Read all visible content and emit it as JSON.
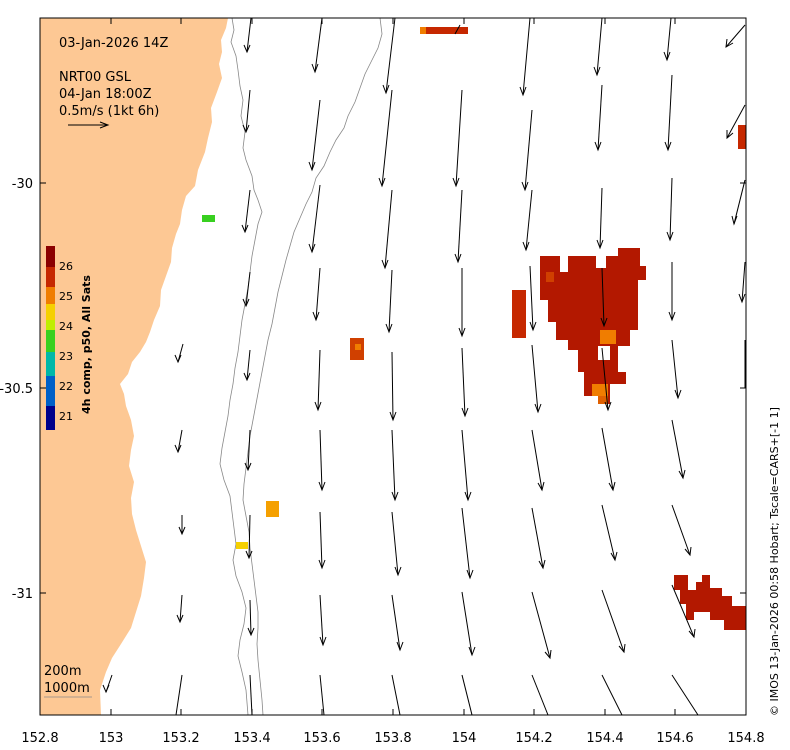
{
  "title": {
    "date": "03-Jan-2026 14Z",
    "product": "NRT00 GSL",
    "valid_time": "04-Jan 18:00Z",
    "scale_label": "0.5m/s (1kt 6h)"
  },
  "axes": {
    "x_ticks": [
      "152.8",
      "153",
      "153.2",
      "153.4",
      "153.6",
      "153.8",
      "154",
      "154.2",
      "154.4",
      "154.6",
      "154.8"
    ],
    "y_ticks": [
      "-30",
      "-30.5",
      "-31"
    ]
  },
  "colorbar": {
    "title": "4h comp, p50, All Sats",
    "ticks": [
      "26",
      "25",
      "24",
      "23",
      "22",
      "21"
    ],
    "colors": [
      "#8b0000",
      "#c62800",
      "#f07d00",
      "#f5d000",
      "#bfee00",
      "#38d020",
      "#00b8a8",
      "#0060c8",
      "#00008b"
    ]
  },
  "isobaths": {
    "label_200": "200m",
    "label_1000": "1000m"
  },
  "credit": "© IMOS 13-Jan-2026 00:58 Hobart; Tscale=CARS+[-1 1]",
  "style": {
    "land": "#fdc894",
    "frame": "#000000",
    "arrow": "#000000",
    "isobath": "#888888"
  }
}
